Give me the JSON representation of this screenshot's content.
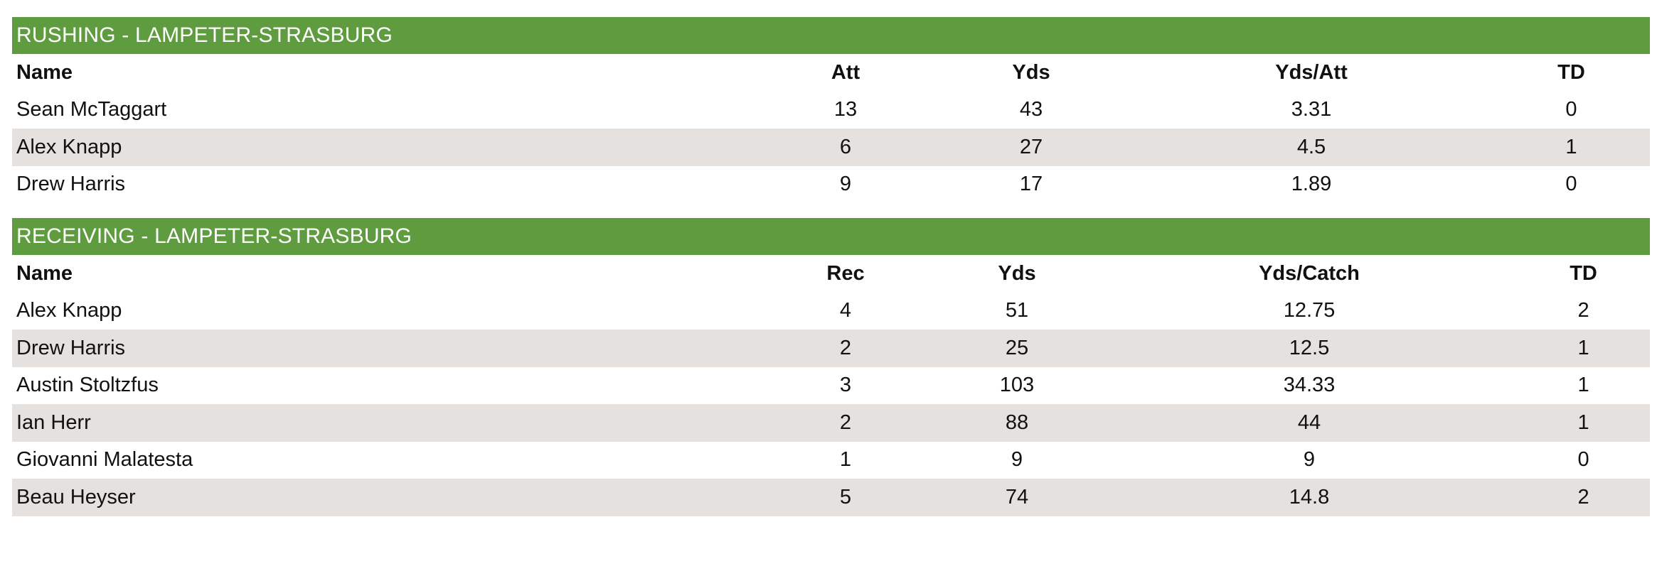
{
  "rushing": {
    "title": "RUSHING - LAMPETER-STRASBURG",
    "headers": [
      "Name",
      "Att",
      "Yds",
      "Yds/Att",
      "TD"
    ],
    "rows": [
      [
        "Sean McTaggart",
        "13",
        "43",
        "3.31",
        "0"
      ],
      [
        "Alex Knapp",
        "6",
        "27",
        "4.5",
        "1"
      ],
      [
        "Drew Harris",
        "9",
        "17",
        "1.89",
        "0"
      ]
    ]
  },
  "receiving": {
    "title": "RECEIVING - LAMPETER-STRASBURG",
    "headers": [
      "Name",
      "Rec",
      "Yds",
      "Yds/Catch",
      "TD"
    ],
    "rows": [
      [
        "Alex Knapp",
        "4",
        "51",
        "12.75",
        "2"
      ],
      [
        "Drew Harris",
        "2",
        "25",
        "12.5",
        "1"
      ],
      [
        "Austin Stoltzfus",
        "3",
        "103",
        "34.33",
        "1"
      ],
      [
        "Ian Herr",
        "2",
        "88",
        "44",
        "1"
      ],
      [
        "Giovanni Malatesta",
        "1",
        "9",
        "9",
        "0"
      ],
      [
        "Beau Heyser",
        "5",
        "74",
        "14.8",
        "2"
      ]
    ]
  },
  "colors": {
    "header_green": "#5f9c3f",
    "row_stripe": "#e4e1df"
  }
}
